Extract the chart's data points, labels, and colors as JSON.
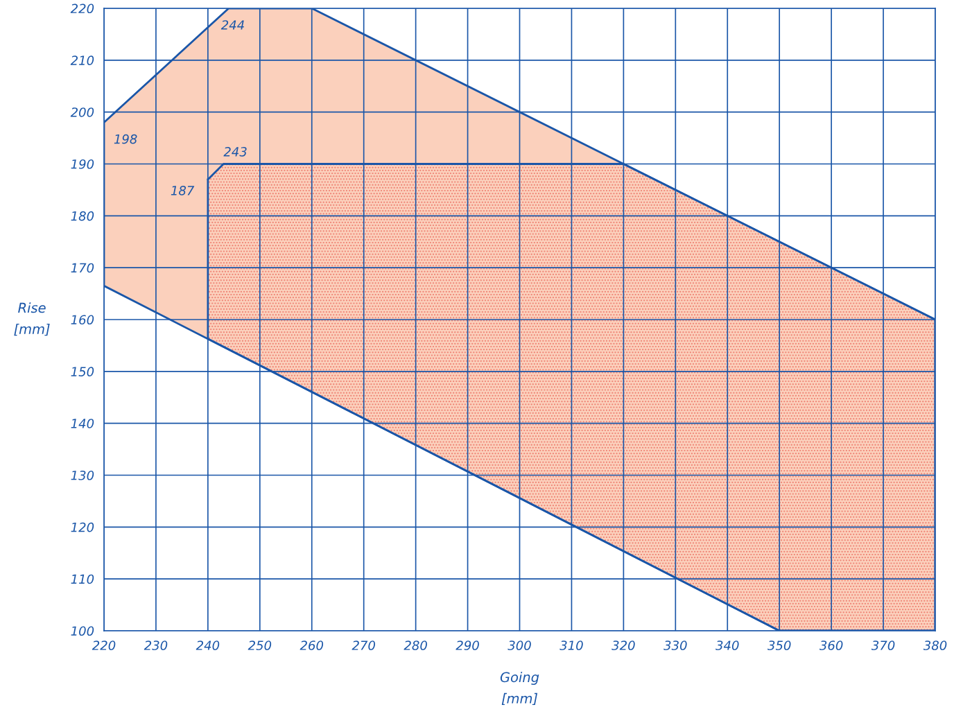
{
  "chart_data": {
    "type": "area",
    "xlabel": "Going\n[mm]",
    "ylabel": "Rise\n[mm]",
    "series": [
      {
        "color": "#fbd0bc",
        "x": [
          220,
          244,
          260,
          320,
          380,
          380,
          350,
          220
        ],
        "values": [
          198,
          220,
          220,
          190,
          160,
          100,
          100,
          166.5
        ]
      },
      {
        "color": "#ef7f70",
        "x": [
          240,
          243,
          320,
          380,
          380,
          350,
          240
        ],
        "values": [
          187,
          190,
          190,
          160,
          100,
          100,
          156.3
        ]
      }
    ],
    "xlim": [
      220,
      380
    ],
    "ylim": [
      100,
      220
    ],
    "xticks": [
      220,
      230,
      240,
      250,
      260,
      270,
      280,
      290,
      300,
      310,
      320,
      330,
      340,
      350,
      360,
      370,
      380
    ],
    "yticks": [
      100,
      110,
      120,
      130,
      140,
      150,
      160,
      170,
      180,
      190,
      200,
      210,
      220
    ],
    "grid": true,
    "annotations": [
      {
        "text": "198",
        "x": 220,
        "y": 198
      },
      {
        "text": "244",
        "x": 244,
        "y": 220
      },
      {
        "text": "243",
        "x": 243,
        "y": 190
      },
      "187"
    ]
  }
}
